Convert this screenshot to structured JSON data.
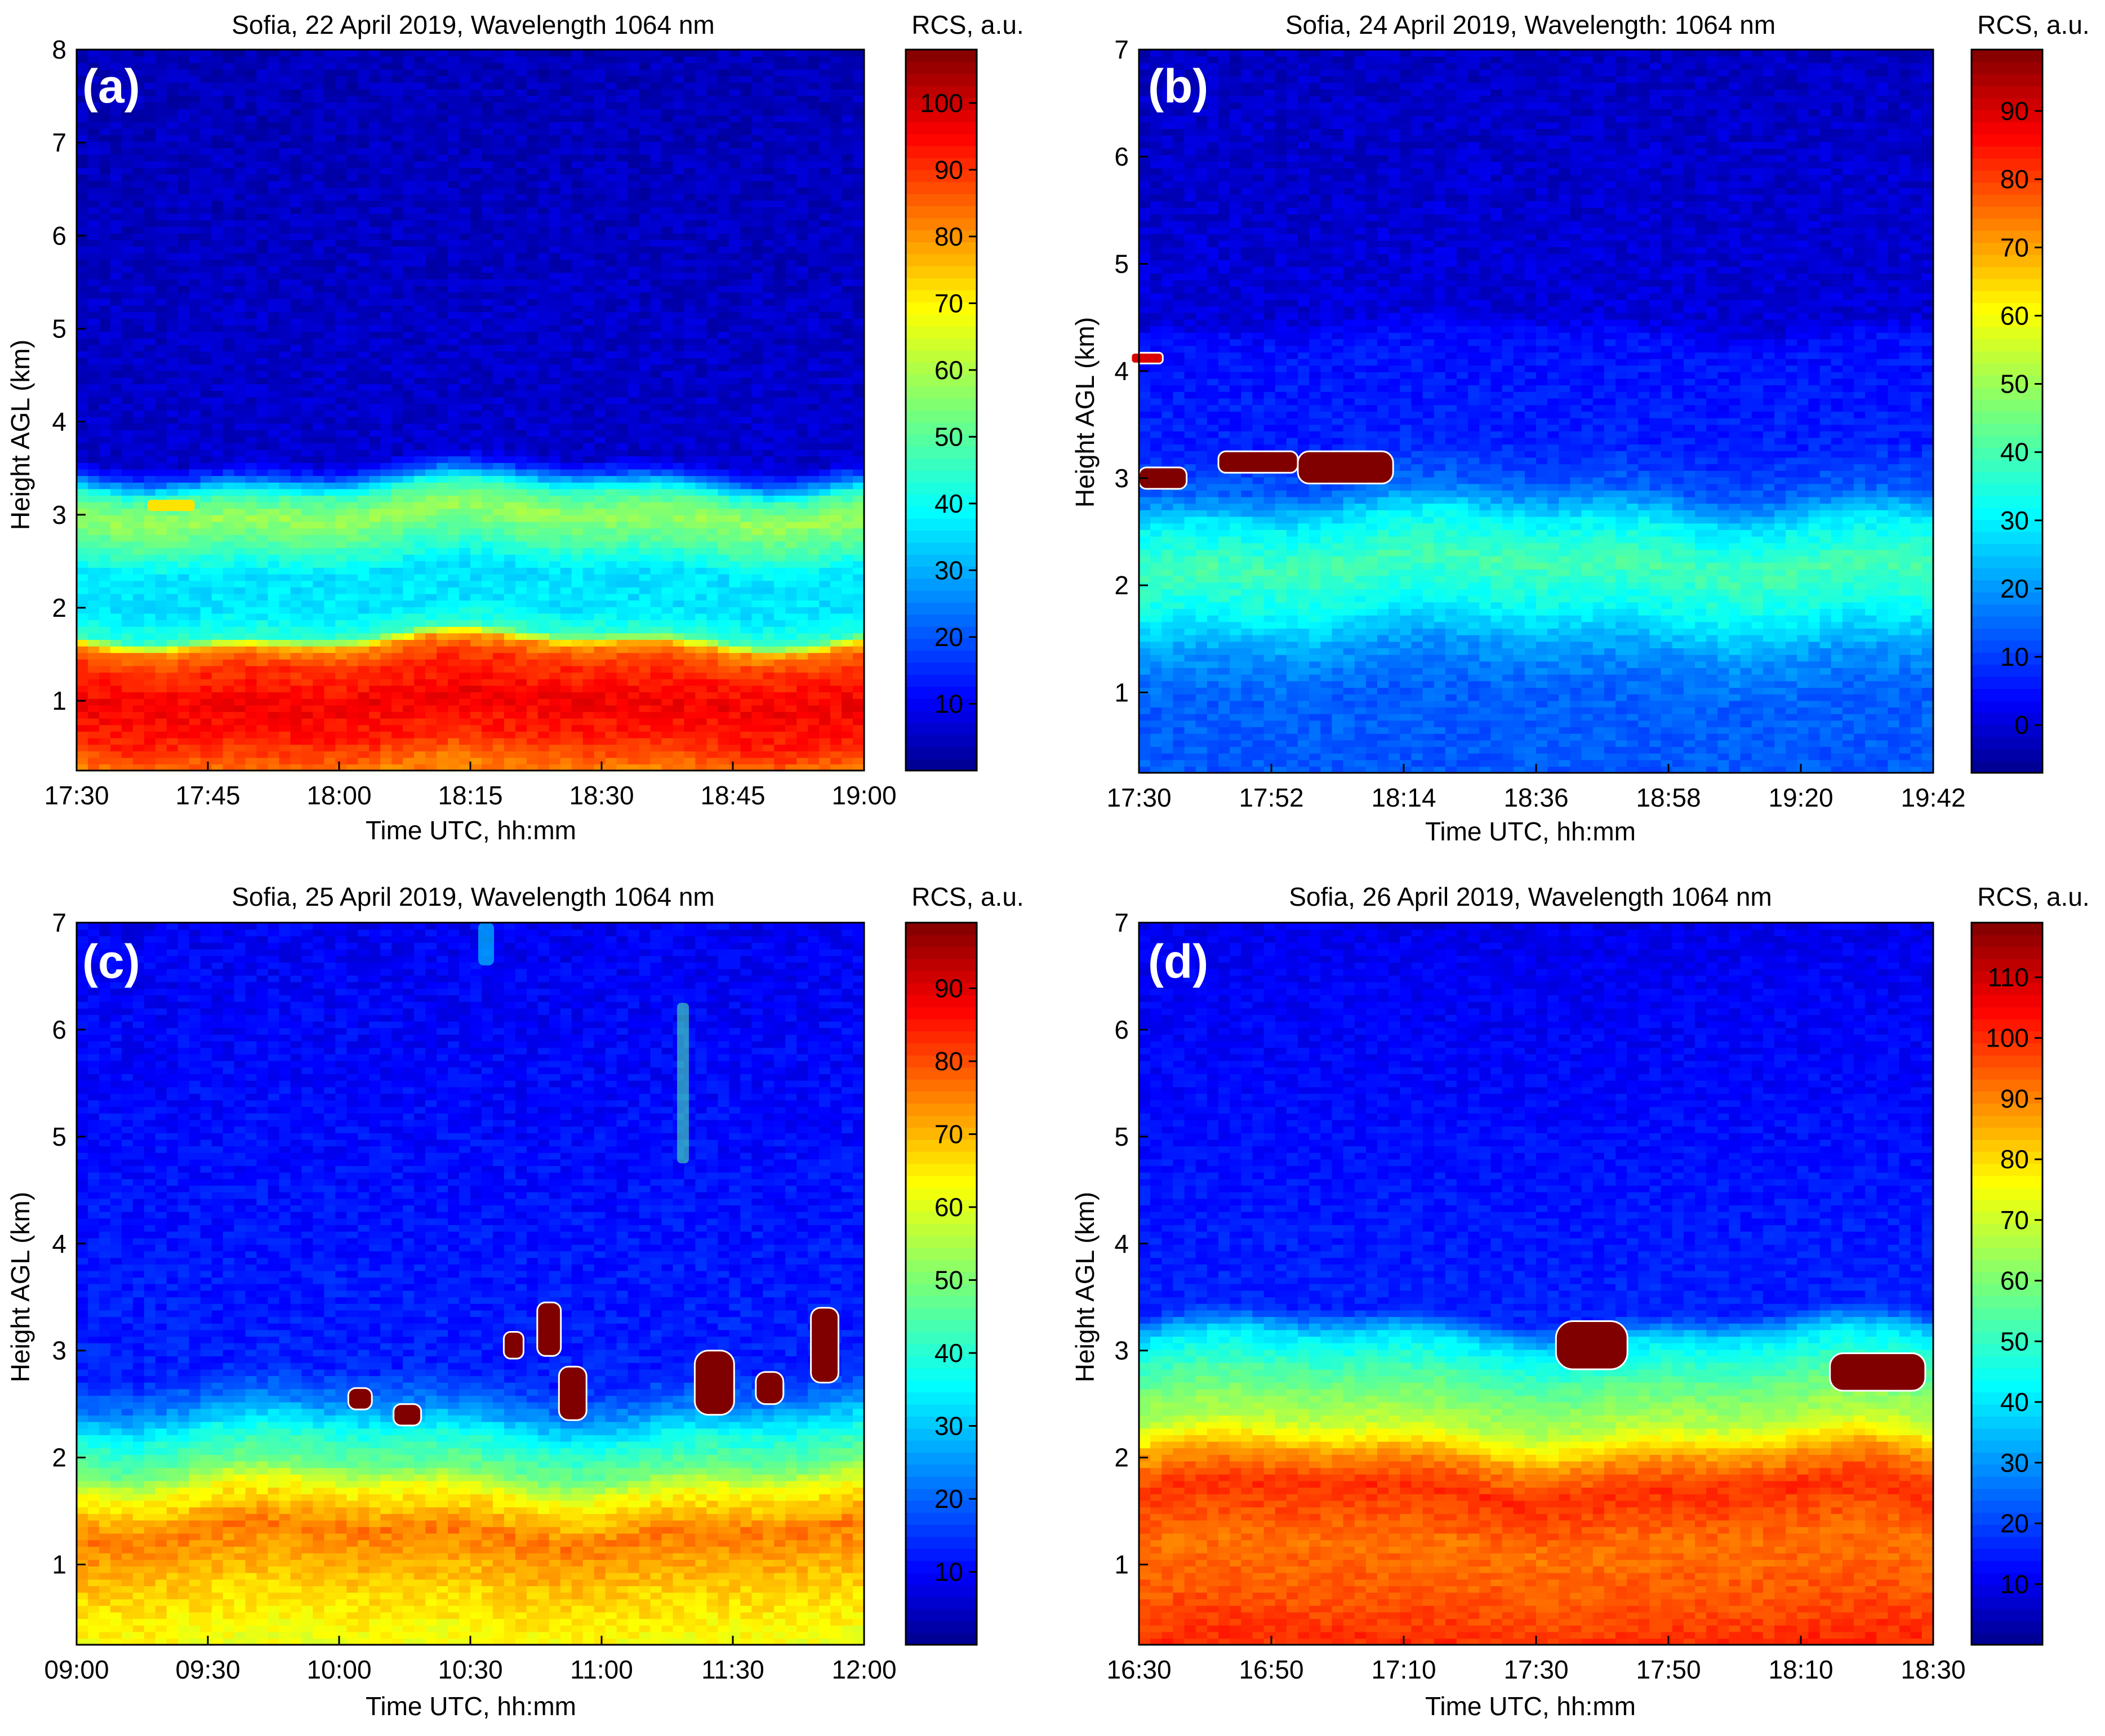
{
  "figure": {
    "panels": [
      {
        "panel_label": "(a)",
        "title": "Sofia, 22 April 2019, Wavelength 1064 nm",
        "xlabel": "Time UTC, hh:mm",
        "ylabel": "Height AGL (km)",
        "colorbar_label": "RCS, a.u."
      },
      {
        "panel_label": "(b)",
        "title": "Sofia, 24 April 2019, Wavelength: 1064 nm",
        "xlabel": "Time UTC, hh:mm",
        "ylabel": "Height AGL (km)",
        "colorbar_label": "RCS, a.u."
      },
      {
        "panel_label": "(c)",
        "title": "Sofia, 25 April 2019, Wavelength 1064 nm",
        "xlabel": "Time UTC, hh:mm",
        "ylabel": "Height AGL (km)",
        "colorbar_label": "RCS, a.u."
      },
      {
        "panel_label": "(d)",
        "title": "Sofia, 26 April 2019, Wavelength 1064 nm",
        "xlabel": "Time UTC, hh:mm",
        "ylabel": "Height AGL (km)",
        "colorbar_label": "RCS, a.u."
      }
    ]
  },
  "chart_data": [
    {
      "type": "heatmap",
      "title": "Sofia, 22 April 2019, Wavelength 1064 nm",
      "xlabel": "Time UTC, hh:mm",
      "ylabel": "Height AGL (km)",
      "x_ticks": [
        "17:30",
        "17:45",
        "18:00",
        "18:15",
        "18:30",
        "18:45",
        "19:00"
      ],
      "y_ticks": [
        1,
        2,
        3,
        4,
        5,
        6,
        7,
        8
      ],
      "ylim": [
        0.25,
        8
      ],
      "colorbar": {
        "label": "RCS, a.u.",
        "ticks": [
          10,
          20,
          30,
          40,
          50,
          60,
          70,
          80,
          90,
          100
        ],
        "range": [
          0,
          108
        ]
      },
      "colormap": "jet",
      "background_value": 5,
      "profile": [
        {
          "h": 0.25,
          "v": 82
        },
        {
          "h": 0.6,
          "v": 92
        },
        {
          "h": 1.0,
          "v": 96
        },
        {
          "h": 1.4,
          "v": 90
        },
        {
          "h": 1.6,
          "v": 80
        },
        {
          "h": 1.72,
          "v": 45
        },
        {
          "h": 2.0,
          "v": 36
        },
        {
          "h": 2.4,
          "v": 36
        },
        {
          "h": 2.7,
          "v": 48
        },
        {
          "h": 3.0,
          "v": 58
        },
        {
          "h": 3.25,
          "v": 46
        },
        {
          "h": 3.45,
          "v": 18
        },
        {
          "h": 3.6,
          "v": 6
        },
        {
          "h": 8.0,
          "v": 4
        }
      ],
      "features": [
        {
          "kind": "blob",
          "t": 0.12,
          "h": 3.1,
          "value": 72,
          "width": 0.06,
          "height": 0.12
        }
      ]
    },
    {
      "type": "heatmap",
      "title": "Sofia, 24 April 2019, Wavelength: 1064 nm",
      "xlabel": "Time UTC, hh:mm",
      "ylabel": "Height AGL (km)",
      "x_ticks": [
        "17:30",
        "17:52",
        "18:14",
        "18:36",
        "18:58",
        "19:20",
        "19:42"
      ],
      "y_ticks": [
        1,
        2,
        3,
        4,
        5,
        6,
        7
      ],
      "ylim": [
        0.25,
        7
      ],
      "colorbar": {
        "label": "RCS, a.u.",
        "ticks": [
          0,
          10,
          20,
          30,
          40,
          50,
          60,
          70,
          80,
          90
        ],
        "range": [
          -7,
          99
        ]
      },
      "colormap": "jet",
      "background_value": -2,
      "profile": [
        {
          "h": 0.25,
          "v": 13
        },
        {
          "h": 1.0,
          "v": 14
        },
        {
          "h": 1.4,
          "v": 20
        },
        {
          "h": 1.8,
          "v": 32
        },
        {
          "h": 2.2,
          "v": 40
        },
        {
          "h": 2.6,
          "v": 30
        },
        {
          "h": 2.9,
          "v": 14
        },
        {
          "h": 3.3,
          "v": 7
        },
        {
          "h": 4.3,
          "v": 5
        },
        {
          "h": 4.5,
          "v": 0
        },
        {
          "h": 7.0,
          "v": -2
        }
      ],
      "features": [
        {
          "kind": "cloud",
          "t": 0.03,
          "h": 3.0,
          "value": 99,
          "width": 0.06,
          "height": 0.2
        },
        {
          "kind": "cloud",
          "t": 0.15,
          "h": 3.15,
          "value": 99,
          "width": 0.1,
          "height": 0.2
        },
        {
          "kind": "cloud",
          "t": 0.26,
          "h": 3.1,
          "value": 99,
          "width": 0.12,
          "height": 0.3
        },
        {
          "kind": "cloud",
          "t": 0.01,
          "h": 4.12,
          "value": 90,
          "width": 0.04,
          "height": 0.1
        }
      ]
    },
    {
      "type": "heatmap",
      "title": "Sofia, 25 April 2019, Wavelength 1064 nm",
      "xlabel": "Time UTC, hh:mm",
      "ylabel": "Height AGL (km)",
      "x_ticks": [
        "09:00",
        "09:30",
        "10:00",
        "10:30",
        "11:00",
        "11:30",
        "12:00"
      ],
      "y_ticks": [
        1,
        2,
        3,
        4,
        5,
        6,
        7
      ],
      "ylim": [
        0.25,
        7
      ],
      "colorbar": {
        "label": "RCS, a.u.",
        "ticks": [
          10,
          20,
          30,
          40,
          50,
          60,
          70,
          80,
          90
        ],
        "range": [
          0,
          99
        ]
      },
      "colormap": "jet",
      "background_value": 10,
      "profile": [
        {
          "h": 0.25,
          "v": 62
        },
        {
          "h": 0.8,
          "v": 68
        },
        {
          "h": 1.3,
          "v": 76
        },
        {
          "h": 1.7,
          "v": 62
        },
        {
          "h": 1.9,
          "v": 48
        },
        {
          "h": 2.2,
          "v": 38
        },
        {
          "h": 2.5,
          "v": 22
        },
        {
          "h": 2.8,
          "v": 13
        },
        {
          "h": 7.0,
          "v": 9
        }
      ],
      "features": [
        {
          "kind": "cloud",
          "t": 0.36,
          "h": 2.55,
          "value": 99,
          "width": 0.03,
          "height": 0.2
        },
        {
          "kind": "cloud",
          "t": 0.42,
          "h": 2.4,
          "value": 99,
          "width": 0.035,
          "height": 0.2
        },
        {
          "kind": "cloud",
          "t": 0.555,
          "h": 3.05,
          "value": 99,
          "width": 0.025,
          "height": 0.25
        },
        {
          "kind": "cloud",
          "t": 0.6,
          "h": 3.2,
          "value": 99,
          "width": 0.03,
          "height": 0.5
        },
        {
          "kind": "cloud",
          "t": 0.63,
          "h": 2.6,
          "value": 99,
          "width": 0.035,
          "height": 0.5
        },
        {
          "kind": "cloud",
          "t": 0.81,
          "h": 2.7,
          "value": 99,
          "width": 0.05,
          "height": 0.6
        },
        {
          "kind": "cloud",
          "t": 0.88,
          "h": 2.65,
          "value": 99,
          "width": 0.035,
          "height": 0.3
        },
        {
          "kind": "cloud",
          "t": 0.95,
          "h": 3.05,
          "value": 99,
          "width": 0.035,
          "height": 0.7
        },
        {
          "kind": "streak",
          "t": 0.77,
          "h": 5.5,
          "value": 45,
          "width": 0.015,
          "height": 1.5
        },
        {
          "kind": "streak",
          "t": 0.52,
          "h": 6.8,
          "value": 35,
          "width": 0.02,
          "height": 0.4
        }
      ]
    },
    {
      "type": "heatmap",
      "title": "Sofia, 26 April 2019, Wavelength 1064 nm",
      "xlabel": "Time UTC, hh:mm",
      "ylabel": "Height AGL (km)",
      "x_ticks": [
        "16:30",
        "16:50",
        "17:10",
        "17:30",
        "17:50",
        "18:10",
        "18:30"
      ],
      "y_ticks": [
        1,
        2,
        3,
        4,
        5,
        6,
        7
      ],
      "ylim": [
        0.25,
        7
      ],
      "colorbar": {
        "label": "RCS, a.u.",
        "ticks": [
          10,
          20,
          30,
          40,
          50,
          60,
          70,
          80,
          90,
          100,
          110
        ],
        "range": [
          0,
          119
        ]
      },
      "colormap": "jet",
      "background_value": 10,
      "profile": [
        {
          "h": 0.25,
          "v": 100
        },
        {
          "h": 0.7,
          "v": 95
        },
        {
          "h": 1.2,
          "v": 92
        },
        {
          "h": 1.7,
          "v": 100
        },
        {
          "h": 2.0,
          "v": 88
        },
        {
          "h": 2.3,
          "v": 68
        },
        {
          "h": 2.7,
          "v": 56
        },
        {
          "h": 3.1,
          "v": 40
        },
        {
          "h": 3.35,
          "v": 16
        },
        {
          "h": 7.0,
          "v": 10
        }
      ],
      "features": [
        {
          "kind": "cloud",
          "t": 0.57,
          "h": 3.05,
          "value": 119,
          "width": 0.09,
          "height": 0.45
        },
        {
          "kind": "cloud",
          "t": 0.93,
          "h": 2.8,
          "value": 119,
          "width": 0.12,
          "height": 0.35
        }
      ]
    }
  ]
}
